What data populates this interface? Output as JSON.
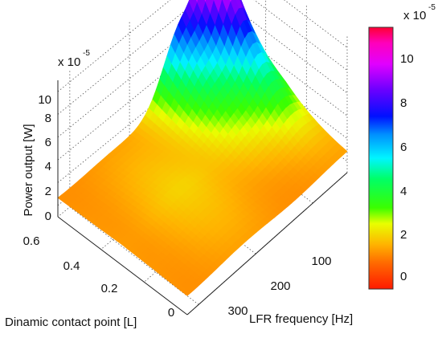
{
  "chart_data": {
    "type": "surface",
    "title": "",
    "xlabel": "LFR frequency [Hz]",
    "ylabel": "Dinamic contact point [L]",
    "zlabel": "Power output [W]",
    "x_ticks": [
      "100",
      "200",
      "300"
    ],
    "y_ticks": [
      "0",
      "0.2",
      "0.4",
      "0.6"
    ],
    "z_ticks": [
      "0",
      "2",
      "4",
      "6",
      "8",
      "10"
    ],
    "z_multiplier": {
      "base": "x 10",
      "exponent": "-5"
    },
    "xlim": [
      40,
      320
    ],
    "ylim": [
      0,
      0.6
    ],
    "zlim": [
      -1,
      11
    ],
    "colorbar": {
      "ticks": [
        "0",
        "2",
        "4",
        "6",
        "8",
        "10"
      ],
      "range": [
        -1,
        11.2
      ],
      "multiplier": {
        "base": "x 10",
        "exponent": "-5"
      },
      "colormap": "hsv"
    },
    "surface_peaks": [
      {
        "x": 60,
        "y": 0.6,
        "z": 11.2
      },
      {
        "x": 110,
        "y": 0.6,
        "z": 7.5
      }
    ]
  }
}
